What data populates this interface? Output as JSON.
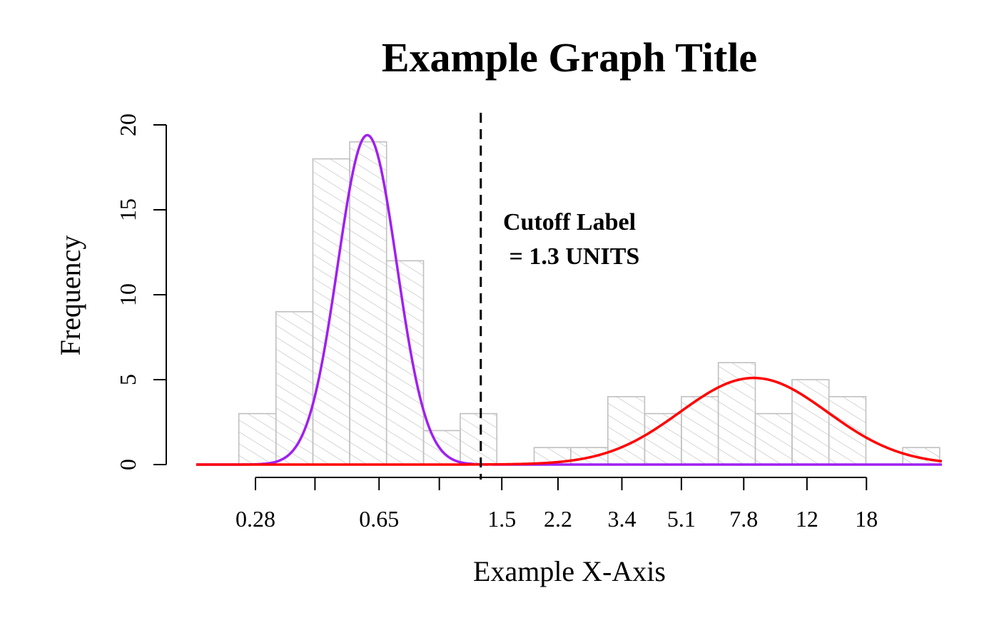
{
  "chart_data": {
    "type": "bar",
    "title": "Example Graph Title",
    "xlabel": "Example X-Axis",
    "ylabel": "Frequency",
    "x_scale": "log",
    "xlim": [
      0.187,
      30.1
    ],
    "ylim": [
      0,
      20
    ],
    "y_ticks": [
      0,
      5,
      10,
      15,
      20
    ],
    "x_ticks": [
      {
        "value": 0.28,
        "label": "0.28"
      },
      {
        "value": 0.42,
        "label": ""
      },
      {
        "value": 0.65,
        "label": "0.65"
      },
      {
        "value": 0.98,
        "label": ""
      },
      {
        "value": 1.5,
        "label": "1.5"
      },
      {
        "value": 2.2,
        "label": "2.2"
      },
      {
        "value": 3.4,
        "label": "3.4"
      },
      {
        "value": 5.1,
        "label": "5.1"
      },
      {
        "value": 7.8,
        "label": "7.8"
      },
      {
        "value": 12,
        "label": "12"
      },
      {
        "value": 18,
        "label": "18"
      }
    ],
    "grid": false,
    "legend": "none",
    "bins": [
      {
        "x0": 0.25,
        "x1": 0.322,
        "count": 3
      },
      {
        "x0": 0.322,
        "x1": 0.414,
        "count": 9
      },
      {
        "x0": 0.414,
        "x1": 0.532,
        "count": 18
      },
      {
        "x0": 0.532,
        "x1": 0.684,
        "count": 19
      },
      {
        "x0": 0.684,
        "x1": 0.88,
        "count": 12
      },
      {
        "x0": 0.88,
        "x1": 1.13,
        "count": 2
      },
      {
        "x0": 1.13,
        "x1": 1.45,
        "count": 3
      },
      {
        "x0": 1.45,
        "x1": 1.87,
        "count": 0
      },
      {
        "x0": 1.87,
        "x1": 2.4,
        "count": 1
      },
      {
        "x0": 2.4,
        "x1": 3.09,
        "count": 1
      },
      {
        "x0": 3.09,
        "x1": 3.97,
        "count": 4
      },
      {
        "x0": 3.97,
        "x1": 5.1,
        "count": 3
      },
      {
        "x0": 5.1,
        "x1": 6.56,
        "count": 4
      },
      {
        "x0": 6.56,
        "x1": 8.44,
        "count": 6
      },
      {
        "x0": 8.44,
        "x1": 10.84,
        "count": 3
      },
      {
        "x0": 10.84,
        "x1": 13.94,
        "count": 5
      },
      {
        "x0": 13.94,
        "x1": 17.93,
        "count": 4
      },
      {
        "x0": 17.93,
        "x1": 23.05,
        "count": 0
      },
      {
        "x0": 23.05,
        "x1": 29.64,
        "count": 1
      }
    ],
    "curves": [
      {
        "color": "#a020f0",
        "peak_x": 0.6,
        "peak_y": 19.4,
        "sd_decades": 0.0875
      },
      {
        "color": "#ff0000",
        "peak_x": 8.35,
        "peak_y": 5.1,
        "sd_decades": 0.218
      }
    ],
    "cutoff": {
      "x": 1.3,
      "label_line1": "Cutoff Label",
      "label_line2": " = 1.3 UNITS"
    },
    "colors": {
      "bar_outline": "#c0c0c0",
      "hatch": "#c0c0c0",
      "axis": "#000000",
      "cutoff_line": "#000000"
    }
  }
}
